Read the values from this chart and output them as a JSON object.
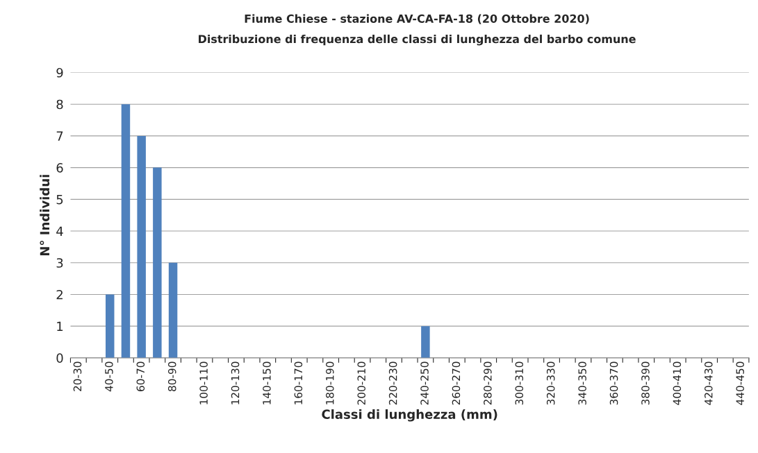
{
  "chart_data": {
    "type": "bar",
    "title": "Fiume Chiese - stazione AV-CA-FA-18 (20 Ottobre 2020)",
    "subtitle": "Distribuzione di frequenza delle classi di lunghezza del barbo comune",
    "xlabel": "Classi di lunghezza (mm)",
    "ylabel": "N° Individui",
    "categories": [
      "20-30",
      null,
      "40-50",
      null,
      "60-70",
      null,
      "80-90",
      null,
      "100-110",
      null,
      "120-130",
      null,
      "140-150",
      null,
      "160-170",
      null,
      "180-190",
      null,
      "200-210",
      null,
      "220-230",
      null,
      "240-250",
      null,
      "260-270",
      null,
      "280-290",
      null,
      "300-310",
      null,
      "320-330",
      null,
      "340-350",
      null,
      "360-370",
      null,
      "380-390",
      null,
      "400-410",
      null,
      "420-430",
      null,
      "440-450"
    ],
    "values": [
      0,
      0,
      2,
      8,
      7,
      6,
      3,
      0,
      0,
      0,
      0,
      0,
      0,
      0,
      0,
      0,
      0,
      0,
      0,
      0,
      0,
      0,
      1,
      0,
      0,
      0,
      0,
      0,
      0,
      0,
      0,
      0,
      0,
      0,
      0,
      0,
      0,
      0,
      0,
      0,
      0,
      0,
      0
    ],
    "color": "#4f81bd",
    "ylim": [
      0,
      9
    ],
    "yticks": [
      0,
      1,
      2,
      3,
      4,
      5,
      6,
      7,
      8,
      9
    ],
    "grid": "y"
  }
}
